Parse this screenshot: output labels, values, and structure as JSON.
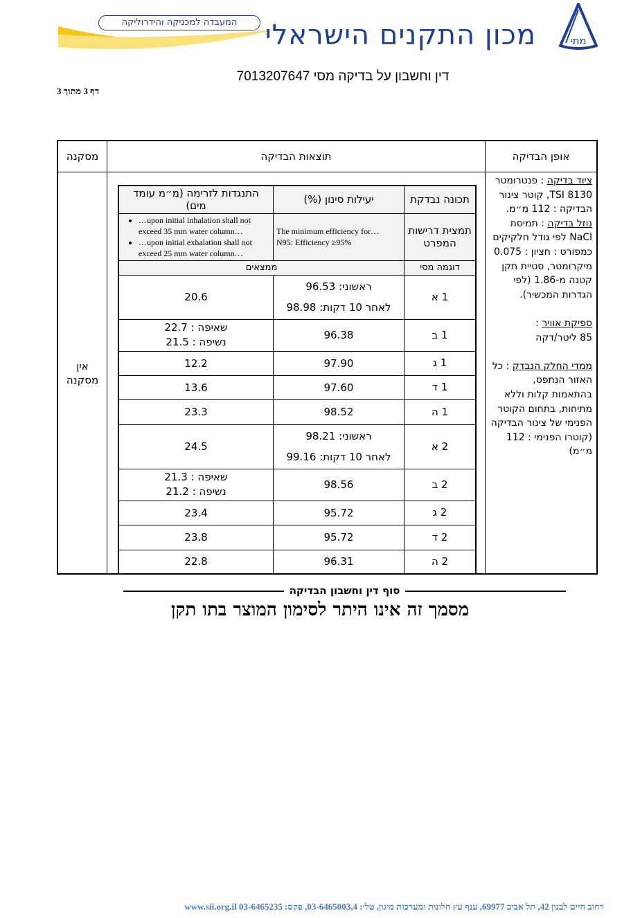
{
  "header": {
    "org_name": "מכון התקנים הישראלי",
    "lab_name": "המעבדה למכניקה והידרוליקה",
    "emblem_text": "מתי",
    "brand_color": "#1f3f93",
    "swoosh_color": "#f5c518"
  },
  "report_title": "דין וחשבון על בדיקה מסי 7013207647",
  "page_number": "דף 3 מתוך 3",
  "outer_table": {
    "headers": {
      "method": "אופן הבדיקה",
      "results": "תוצאות הבדיקה",
      "conclusion": "מסקנה"
    },
    "method": {
      "equipment_label": "ציוד בדיקה",
      "equipment_text": "פנטרומטר TSI 8130, קוטר צינור הבדיקה : 112 מ״מ.",
      "aerosol_label": "נוזל בדיקה",
      "aerosol_text": "תמיסת NaCl לפי גודל חלקיקים כמפורט : חציון : 0.075 מיקרומטר, סטיית תקן קטנה מ-1.86 (לפי הגדרות המכשיר).",
      "flow_label": "ספיקת אוויר",
      "flow_text": "85 ליטר/דקה",
      "dims_label": "ממדי החלק הנבדק",
      "dims_text": "כל האזור הנתפס, בהתאמות קלות וללא מתיחות, בתחום הקוטר הפנימי של צינור הבדיקה (קוטרו הפנימי : 112 מ״מ)"
    },
    "conclusion": "אין מסקנה"
  },
  "inner_table": {
    "headers": {
      "property": "תכונה נבדקת",
      "efficiency": "יעילות סינון (%)",
      "resistance": "התנגדות לזרימה (מ״מ עומד מים)"
    },
    "spec": {
      "label": "תמצית דרישות המפרט",
      "efficiency": [
        "The minimum efficiency for…",
        "N95: Efficiency ≥95%"
      ],
      "resistance": [
        "…upon initial inhalation shall not exceed 35 mm water column…",
        "…upon initial exhalation shall not exceed 25 mm water column…"
      ]
    },
    "sample_header": "דוגמה מסי",
    "findings_header": "ממצאים",
    "rows": [
      {
        "sample": "1 א",
        "efficiency": [
          "ראשוני: 96.53",
          "לאחר 10 דקות: 98.98"
        ],
        "resistance": [
          "20.6"
        ]
      },
      {
        "sample": "1 ב",
        "efficiency": [
          "96.38"
        ],
        "resistance": [
          "שאיפה : 22.7",
          "נשיפה : 21.5"
        ]
      },
      {
        "sample": "1 ג",
        "efficiency": [
          "97.90"
        ],
        "resistance": [
          "12.2"
        ]
      },
      {
        "sample": "1 ד",
        "efficiency": [
          "97.60"
        ],
        "resistance": [
          "13.6"
        ]
      },
      {
        "sample": "1 ה",
        "efficiency": [
          "98.52"
        ],
        "resistance": [
          "23.3"
        ]
      },
      {
        "sample": "2 א",
        "efficiency": [
          "ראשוני: 98.21",
          "לאחר 10 דקות: 99.16"
        ],
        "resistance": [
          "24.5"
        ]
      },
      {
        "sample": "2 ב",
        "efficiency": [
          "98.56"
        ],
        "resistance": [
          "שאיפה : 21.3",
          "נשיפה : 21.2"
        ]
      },
      {
        "sample": "2 ג",
        "efficiency": [
          "95.72"
        ],
        "resistance": [
          "23.4"
        ]
      },
      {
        "sample": "2 ד",
        "efficiency": [
          "95.72"
        ],
        "resistance": [
          "23.8"
        ]
      },
      {
        "sample": "2 ה",
        "efficiency": [
          "96.31"
        ],
        "resistance": [
          "22.8"
        ]
      }
    ]
  },
  "end_note": "סוף דין וחשבון הבדיקה",
  "disclaimer": "מסמך זה אינו היתר לסימון המוצר בתו תקן",
  "footer": "רחוב חיים לבנון 42, תל אביב 69977, ענף עץ חלונות ומערכות מיגון, טל׳: 03-6465003,4, פקס: 03-6465235  www.sii.org.il"
}
